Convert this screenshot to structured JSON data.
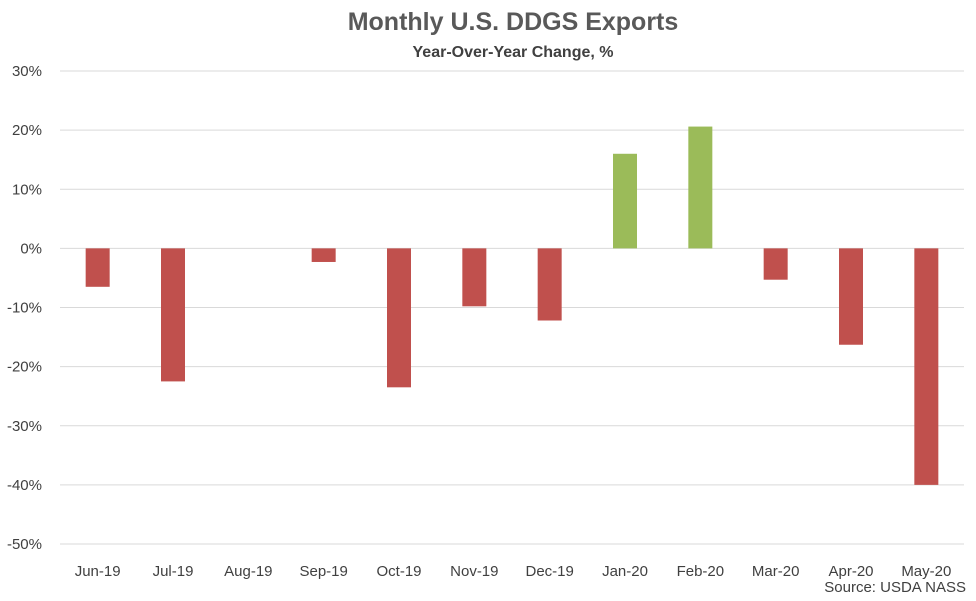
{
  "chart_data": {
    "type": "bar",
    "title": "Monthly U.S. DDGS Exports",
    "subtitle": "Year-Over-Year Change, %",
    "source": "Source: USDA NASS",
    "categories": [
      "Jun-19",
      "Jul-19",
      "Aug-19",
      "Sep-19",
      "Oct-19",
      "Nov-19",
      "Dec-19",
      "Jan-20",
      "Feb-20",
      "Mar-20",
      "Apr-20",
      "May-20"
    ],
    "values": [
      -6.5,
      -22.5,
      0,
      -2.3,
      -23.5,
      -9.8,
      -12.2,
      16.0,
      20.6,
      -5.3,
      -16.3,
      -40.0
    ],
    "ylim": [
      -50,
      30
    ],
    "yticks": [
      30,
      20,
      10,
      0,
      -10,
      -20,
      -30,
      -40,
      -50
    ],
    "ytick_labels": [
      "30%",
      "20%",
      "10%",
      "0%",
      "-10%",
      "-20%",
      "-30%",
      "-40%",
      "-50%"
    ],
    "grid": true,
    "colors": {
      "positive": "#9BBB59",
      "negative": "#C0504D",
      "grid": "#D9D9D9"
    }
  }
}
